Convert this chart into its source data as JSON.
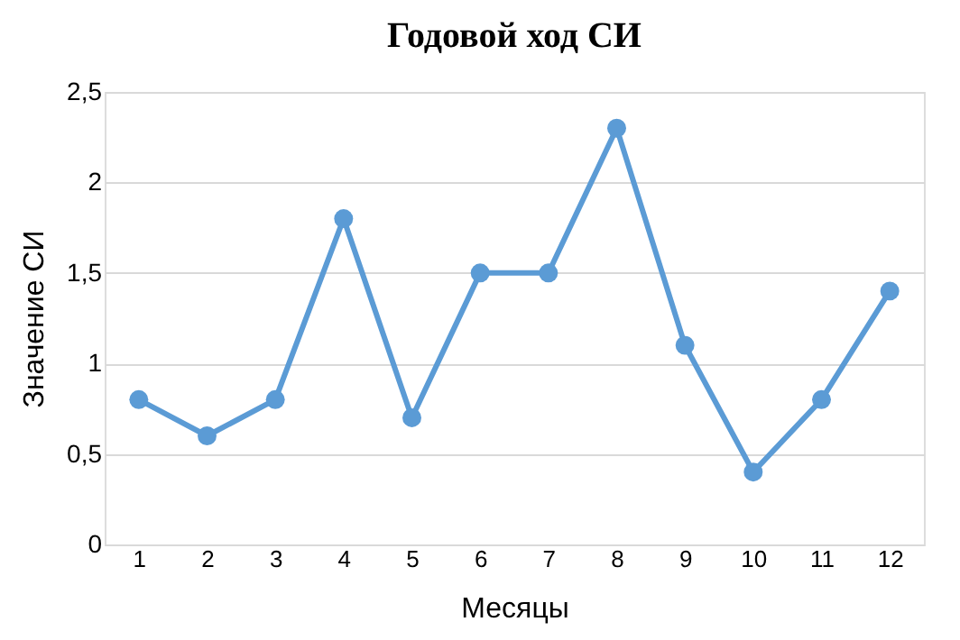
{
  "chart_data": {
    "type": "line",
    "title": "Годовой ход СИ",
    "xlabel": "Месяцы",
    "ylabel": "Значение СИ",
    "x": [
      1,
      2,
      3,
      4,
      5,
      6,
      7,
      8,
      9,
      10,
      11,
      12
    ],
    "xlim": [
      0.5,
      12.5
    ],
    "xticks": [
      1,
      2,
      3,
      4,
      5,
      6,
      7,
      8,
      9,
      10,
      11,
      12
    ],
    "series": [
      {
        "color": "#5b9bd5",
        "values": [
          0.8,
          0.6,
          0.8,
          1.8,
          0.7,
          1.5,
          1.5,
          2.3,
          1.1,
          0.4,
          0.8,
          1.4
        ]
      }
    ],
    "ylim": [
      0,
      2.5
    ],
    "yticks": [
      0,
      {
        "value": 0.5,
        "label": "0,5"
      },
      1,
      {
        "value": 1.5,
        "label": "1,5"
      },
      2,
      {
        "value": 2.5,
        "label": "2,5"
      }
    ],
    "grid": "y",
    "marker": "circle",
    "line_style": "solid"
  }
}
